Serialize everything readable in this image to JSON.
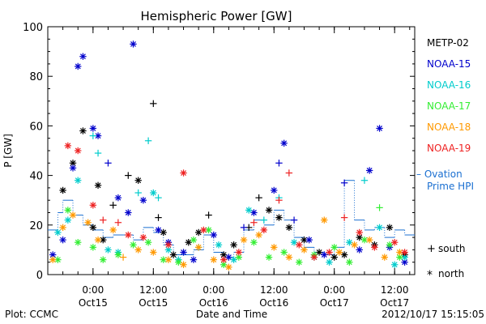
{
  "chart_data": {
    "type": "scatter",
    "title": "Hemispheric Power [GW]",
    "ylabel": "P [GW]",
    "xlabel": "Date and Time",
    "xlim": [
      "2012-10-14T15:00",
      "2012-10-17T16:00"
    ],
    "ylim": [
      0,
      100
    ],
    "yticks": [
      0,
      20,
      40,
      60,
      80,
      100
    ],
    "xticks": [
      {
        "t": "2012-10-15T00:00",
        "top": "0:00",
        "bottom": "Oct15"
      },
      {
        "t": "2012-10-15T12:00",
        "top": "12:00",
        "bottom": "Oct15"
      },
      {
        "t": "2012-10-16T00:00",
        "top": "0:00",
        "bottom": "Oct16"
      },
      {
        "t": "2012-10-16T12:00",
        "top": "12:00",
        "bottom": "Oct16"
      },
      {
        "t": "2012-10-17T00:00",
        "top": "0:00",
        "bottom": "Oct17"
      },
      {
        "t": "2012-10-17T12:00",
        "top": "12:00",
        "bottom": "Oct17"
      }
    ],
    "series": [
      {
        "name": "METP-02",
        "color": "#000000",
        "points": [
          [
            "2012-10-14T18:00",
            34,
            "n"
          ],
          [
            "2012-10-14T20:00",
            45,
            "n"
          ],
          [
            "2012-10-14T22:00",
            58,
            "n"
          ],
          [
            "2012-10-15T00:00",
            19,
            "n"
          ],
          [
            "2012-10-15T01:00",
            36,
            "n"
          ],
          [
            "2012-10-15T02:00",
            14,
            "n"
          ],
          [
            "2012-10-15T04:00",
            28,
            "s"
          ],
          [
            "2012-10-15T07:00",
            40,
            "s"
          ],
          [
            "2012-10-15T09:00",
            38,
            "n"
          ],
          [
            "2012-10-15T12:00",
            69,
            "s"
          ],
          [
            "2012-10-15T13:00",
            23,
            "s"
          ],
          [
            "2012-10-15T14:00",
            17,
            "n"
          ],
          [
            "2012-10-15T16:00",
            8,
            "n"
          ],
          [
            "2012-10-15T19:00",
            13,
            "n"
          ],
          [
            "2012-10-15T21:00",
            17,
            "n"
          ],
          [
            "2012-10-15T23:00",
            24,
            "s"
          ],
          [
            "2012-10-16T02:00",
            8,
            "n"
          ],
          [
            "2012-10-16T04:00",
            12,
            "n"
          ],
          [
            "2012-10-16T07:00",
            19,
            "s"
          ],
          [
            "2012-10-16T09:00",
            31,
            "s"
          ],
          [
            "2012-10-16T11:00",
            26,
            "n"
          ],
          [
            "2012-10-16T13:00",
            23,
            "n"
          ],
          [
            "2012-10-16T15:00",
            19,
            "n"
          ],
          [
            "2012-10-16T18:00",
            14,
            "n"
          ],
          [
            "2012-10-16T21:00",
            9,
            "n"
          ],
          [
            "2012-10-17T00:00",
            7,
            "n"
          ],
          [
            "2012-10-17T02:00",
            8,
            "n"
          ],
          [
            "2012-10-17T05:00",
            15,
            "n"
          ],
          [
            "2012-10-17T08:00",
            12,
            "n"
          ],
          [
            "2012-10-17T11:00",
            19,
            "n"
          ],
          [
            "2012-10-17T14:00",
            8,
            "n"
          ]
        ]
      },
      {
        "name": "NOAA-15",
        "color": "#0000cc",
        "points": [
          [
            "2012-10-14T16:00",
            8,
            "n"
          ],
          [
            "2012-10-14T18:00",
            14,
            "n"
          ],
          [
            "2012-10-14T20:00",
            43,
            "n"
          ],
          [
            "2012-10-14T21:00",
            84,
            "n"
          ],
          [
            "2012-10-14T22:00",
            88,
            "n"
          ],
          [
            "2012-10-15T00:00",
            59,
            "n"
          ],
          [
            "2012-10-15T01:00",
            56,
            "n"
          ],
          [
            "2012-10-15T03:00",
            45,
            "s"
          ],
          [
            "2012-10-15T05:00",
            31,
            "n"
          ],
          [
            "2012-10-15T07:00",
            25,
            "n"
          ],
          [
            "2012-10-15T08:00",
            93,
            "n"
          ],
          [
            "2012-10-15T10:00",
            30,
            "n"
          ],
          [
            "2012-10-15T13:00",
            18,
            "n"
          ],
          [
            "2012-10-15T15:00",
            13,
            "n"
          ],
          [
            "2012-10-15T18:00",
            9,
            "n"
          ],
          [
            "2012-10-15T20:00",
            6,
            "n"
          ],
          [
            "2012-10-16T00:00",
            16,
            "n"
          ],
          [
            "2012-10-16T03:00",
            7,
            "n"
          ],
          [
            "2012-10-16T06:00",
            19,
            "s"
          ],
          [
            "2012-10-16T08:00",
            25,
            "n"
          ],
          [
            "2012-10-16T12:00",
            34,
            "n"
          ],
          [
            "2012-10-16T13:00",
            45,
            "s"
          ],
          [
            "2012-10-16T14:00",
            53,
            "n"
          ],
          [
            "2012-10-16T16:00",
            22,
            "s"
          ],
          [
            "2012-10-16T19:00",
            14,
            "n"
          ],
          [
            "2012-10-16T22:00",
            8,
            "n"
          ],
          [
            "2012-10-17T02:00",
            37,
            "s"
          ],
          [
            "2012-10-17T05:00",
            10,
            "n"
          ],
          [
            "2012-10-17T07:00",
            42,
            "n"
          ],
          [
            "2012-10-17T09:00",
            59,
            "n"
          ],
          [
            "2012-10-17T11:00",
            11,
            "n"
          ],
          [
            "2012-10-17T14:00",
            5,
            "n"
          ]
        ]
      },
      {
        "name": "NOAA-16",
        "color": "#00cccc",
        "points": [
          [
            "2012-10-14T17:00",
            17,
            "n"
          ],
          [
            "2012-10-14T19:00",
            22,
            "n"
          ],
          [
            "2012-10-14T21:00",
            38,
            "n"
          ],
          [
            "2012-10-15T00:00",
            56,
            "s"
          ],
          [
            "2012-10-15T01:00",
            49,
            "s"
          ],
          [
            "2012-10-15T03:00",
            10,
            "n"
          ],
          [
            "2012-10-15T05:00",
            9,
            "n"
          ],
          [
            "2012-10-15T09:00",
            33,
            "s"
          ],
          [
            "2012-10-15T11:00",
            54,
            "s"
          ],
          [
            "2012-10-15T12:00",
            33,
            "n"
          ],
          [
            "2012-10-15T13:00",
            31,
            "s"
          ],
          [
            "2012-10-15T15:00",
            10,
            "n"
          ],
          [
            "2012-10-15T17:00",
            6,
            "n"
          ],
          [
            "2012-10-15T21:00",
            11,
            "s"
          ],
          [
            "2012-10-16T01:00",
            12,
            "n"
          ],
          [
            "2012-10-16T04:00",
            6,
            "n"
          ],
          [
            "2012-10-16T07:00",
            26,
            "n"
          ],
          [
            "2012-10-16T10:00",
            22,
            "s"
          ],
          [
            "2012-10-16T13:00",
            31,
            "s"
          ],
          [
            "2012-10-16T16:00",
            13,
            "n"
          ],
          [
            "2012-10-16T20:00",
            7,
            "n"
          ],
          [
            "2012-10-16T23:00",
            5,
            "n"
          ],
          [
            "2012-10-17T03:00",
            13,
            "n"
          ],
          [
            "2012-10-17T06:00",
            38,
            "s"
          ],
          [
            "2012-10-17T09:00",
            19,
            "n"
          ],
          [
            "2012-10-17T12:00",
            4,
            "n"
          ],
          [
            "2012-10-17T14:00",
            7,
            "n"
          ]
        ]
      },
      {
        "name": "NOAA-17",
        "color": "#33ee33",
        "points": [
          [
            "2012-10-14T17:00",
            6,
            "n"
          ],
          [
            "2012-10-14T19:00",
            26,
            "n"
          ],
          [
            "2012-10-14T21:00",
            13,
            "n"
          ],
          [
            "2012-10-15T00:00",
            11,
            "n"
          ],
          [
            "2012-10-15T02:00",
            6,
            "n"
          ],
          [
            "2012-10-15T05:00",
            8,
            "n"
          ],
          [
            "2012-10-15T08:00",
            12,
            "n"
          ],
          [
            "2012-10-15T11:00",
            13,
            "n"
          ],
          [
            "2012-10-15T14:00",
            6,
            "n"
          ],
          [
            "2012-10-15T17:00",
            5,
            "n"
          ],
          [
            "2012-10-15T20:00",
            14,
            "n"
          ],
          [
            "2012-10-15T23:00",
            18,
            "n"
          ],
          [
            "2012-10-16T02:00",
            4,
            "n"
          ],
          [
            "2012-10-16T05:00",
            7,
            "n"
          ],
          [
            "2012-10-16T08:00",
            13,
            "n"
          ],
          [
            "2012-10-16T11:00",
            7,
            "n"
          ],
          [
            "2012-10-16T14:00",
            9,
            "n"
          ],
          [
            "2012-10-16T17:00",
            5,
            "n"
          ],
          [
            "2012-10-16T20:00",
            8,
            "n"
          ],
          [
            "2012-10-17T00:00",
            11,
            "n"
          ],
          [
            "2012-10-17T03:00",
            5,
            "n"
          ],
          [
            "2012-10-17T06:00",
            14,
            "n"
          ],
          [
            "2012-10-17T09:00",
            27,
            "s"
          ],
          [
            "2012-10-17T11:00",
            12,
            "n"
          ],
          [
            "2012-10-17T13:00",
            7,
            "n"
          ]
        ]
      },
      {
        "name": "NOAA-18",
        "color": "#ff9900",
        "points": [
          [
            "2012-10-14T16:00",
            6,
            "n"
          ],
          [
            "2012-10-14T18:00",
            19,
            "n"
          ],
          [
            "2012-10-14T20:00",
            24,
            "n"
          ],
          [
            "2012-10-14T23:00",
            21,
            "n"
          ],
          [
            "2012-10-15T01:00",
            14,
            "n"
          ],
          [
            "2012-10-15T04:00",
            18,
            "n"
          ],
          [
            "2012-10-15T06:00",
            7,
            "s"
          ],
          [
            "2012-10-15T09:00",
            10,
            "n"
          ],
          [
            "2012-10-15T12:00",
            9,
            "n"
          ],
          [
            "2012-10-15T15:00",
            6,
            "n"
          ],
          [
            "2012-10-15T18:00",
            4,
            "n"
          ],
          [
            "2012-10-15T21:00",
            11,
            "n"
          ],
          [
            "2012-10-16T00:00",
            6,
            "n"
          ],
          [
            "2012-10-16T03:00",
            3,
            "n"
          ],
          [
            "2012-10-16T06:00",
            14,
            "n"
          ],
          [
            "2012-10-16T09:00",
            16,
            "n"
          ],
          [
            "2012-10-16T12:00",
            11,
            "n"
          ],
          [
            "2012-10-16T15:00",
            7,
            "n"
          ],
          [
            "2012-10-16T18:00",
            10,
            "n"
          ],
          [
            "2012-10-16T22:00",
            22,
            "n"
          ],
          [
            "2012-10-17T01:00",
            9,
            "n"
          ],
          [
            "2012-10-17T04:00",
            12,
            "n"
          ],
          [
            "2012-10-17T07:00",
            14,
            "n"
          ],
          [
            "2012-10-17T10:00",
            7,
            "n"
          ],
          [
            "2012-10-17T13:00",
            9,
            "n"
          ]
        ]
      },
      {
        "name": "NOAA-19",
        "color": "#ee2222",
        "points": [
          [
            "2012-10-14T19:00",
            52,
            "n"
          ],
          [
            "2012-10-14T21:00",
            50,
            "n"
          ],
          [
            "2012-10-15T00:00",
            28,
            "n"
          ],
          [
            "2012-10-15T02:00",
            22,
            "s"
          ],
          [
            "2012-10-15T05:00",
            21,
            "s"
          ],
          [
            "2012-10-15T07:00",
            16,
            "n"
          ],
          [
            "2012-10-15T10:00",
            15,
            "n"
          ],
          [
            "2012-10-15T15:00",
            12,
            "n"
          ],
          [
            "2012-10-15T18:00",
            41,
            "n"
          ],
          [
            "2012-10-15T22:00",
            18,
            "n"
          ],
          [
            "2012-10-16T02:00",
            6,
            "n"
          ],
          [
            "2012-10-16T05:00",
            9,
            "n"
          ],
          [
            "2012-10-16T08:00",
            21,
            "s"
          ],
          [
            "2012-10-16T10:00",
            18,
            "n"
          ],
          [
            "2012-10-16T13:00",
            30,
            "s"
          ],
          [
            "2012-10-16T15:00",
            41,
            "s"
          ],
          [
            "2012-10-16T17:00",
            12,
            "n"
          ],
          [
            "2012-10-16T20:00",
            7,
            "n"
          ],
          [
            "2012-10-16T23:00",
            9,
            "n"
          ],
          [
            "2012-10-17T02:00",
            23,
            "s"
          ],
          [
            "2012-10-17T05:00",
            17,
            "n"
          ],
          [
            "2012-10-17T08:00",
            11,
            "n"
          ],
          [
            "2012-10-17T12:00",
            13,
            "n"
          ],
          [
            "2012-10-17T14:00",
            9,
            "n"
          ]
        ]
      }
    ],
    "ovation": {
      "name": "Ovation Prime HPI",
      "label_line1": "– Ovation",
      "label_line2": "Prime HPI",
      "color": "#1a6fd1",
      "steps": [
        [
          "2012-10-14T15:00",
          18
        ],
        [
          "2012-10-14T17:00",
          25
        ],
        [
          "2012-10-14T18:00",
          30
        ],
        [
          "2012-10-14T20:00",
          24
        ],
        [
          "2012-10-14T22:00",
          20
        ],
        [
          "2012-10-15T00:00",
          18
        ],
        [
          "2012-10-15T02:00",
          15
        ],
        [
          "2012-10-15T04:00",
          16
        ],
        [
          "2012-10-15T06:00",
          16
        ],
        [
          "2012-10-15T08:00",
          14
        ],
        [
          "2012-10-15T10:00",
          19
        ],
        [
          "2012-10-15T12:00",
          17
        ],
        [
          "2012-10-15T14:00",
          12
        ],
        [
          "2012-10-15T16:00",
          8
        ],
        [
          "2012-10-15T18:00",
          8
        ],
        [
          "2012-10-15T20:00",
          10
        ],
        [
          "2012-10-15T22:00",
          16
        ],
        [
          "2012-10-16T00:00",
          9
        ],
        [
          "2012-10-16T02:00",
          7
        ],
        [
          "2012-10-16T04:00",
          9
        ],
        [
          "2012-10-16T06:00",
          18
        ],
        [
          "2012-10-16T08:00",
          22
        ],
        [
          "2012-10-16T10:00",
          20
        ],
        [
          "2012-10-16T12:00",
          26
        ],
        [
          "2012-10-16T14:00",
          22
        ],
        [
          "2012-10-16T16:00",
          15
        ],
        [
          "2012-10-16T18:00",
          11
        ],
        [
          "2012-10-16T20:00",
          9
        ],
        [
          "2012-10-16T22:00",
          8
        ],
        [
          "2012-10-17T00:00",
          11
        ],
        [
          "2012-10-17T02:00",
          38
        ],
        [
          "2012-10-17T04:00",
          22
        ],
        [
          "2012-10-17T06:00",
          18
        ],
        [
          "2012-10-17T08:00",
          19
        ],
        [
          "2012-10-17T10:00",
          15
        ],
        [
          "2012-10-17T12:00",
          18
        ],
        [
          "2012-10-17T14:00",
          16
        ],
        [
          "2012-10-17T16:00",
          16
        ]
      ]
    },
    "symbol_key": {
      "south_symbol": "+",
      "south_label": "south",
      "north_symbol": "*",
      "north_label": "north"
    }
  },
  "footer": {
    "plot_credit": "Plot: CCMC",
    "timestamp": "2012/10/17 15:15:05"
  }
}
